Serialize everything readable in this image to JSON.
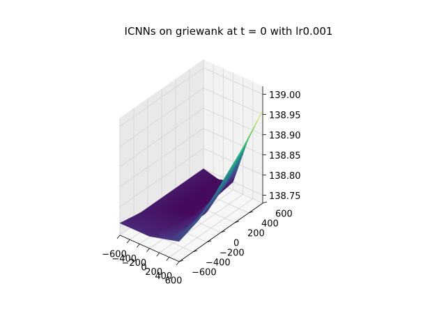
{
  "chart_data": {
    "type": "surface3d",
    "title": "ICNNs on griewank at t = 0 with lr0.001",
    "colormap": "viridis",
    "x_axis": {
      "label": "",
      "range": [
        -600,
        600
      ],
      "ticks": [
        -600,
        -400,
        -200,
        0,
        200,
        400,
        600
      ],
      "tick_labels": [
        "−600",
        "−400",
        "−200",
        "0",
        "200",
        "400",
        "600"
      ]
    },
    "y_axis": {
      "label": "",
      "range": [
        -600,
        600
      ],
      "ticks": [
        -600,
        -400,
        -200,
        0,
        200,
        400,
        600
      ],
      "tick_labels": [
        "−600",
        "−400",
        "−200",
        "0",
        "200",
        "400",
        "600"
      ]
    },
    "z_axis": {
      "label": "",
      "range": [
        138.73,
        139.02
      ],
      "ticks": [
        138.75,
        138.8,
        138.85,
        138.9,
        138.95,
        139.0
      ],
      "tick_labels": [
        "138.75",
        "138.80",
        "138.85",
        "138.90",
        "138.95",
        "139.00"
      ]
    },
    "grid": true,
    "surface_samples": {
      "x": [
        -600,
        -300,
        0,
        300,
        600
      ],
      "y": [
        -600,
        -300,
        0,
        300,
        600
      ],
      "z": [
        [
          138.76,
          138.75,
          138.75,
          138.75,
          138.75
        ],
        [
          138.76,
          138.75,
          138.74,
          138.74,
          138.74
        ],
        [
          138.76,
          138.75,
          138.74,
          138.74,
          138.75
        ],
        [
          138.77,
          138.76,
          138.76,
          138.8,
          138.87
        ],
        [
          138.78,
          138.8,
          138.85,
          138.9,
          138.96
        ]
      ]
    }
  }
}
